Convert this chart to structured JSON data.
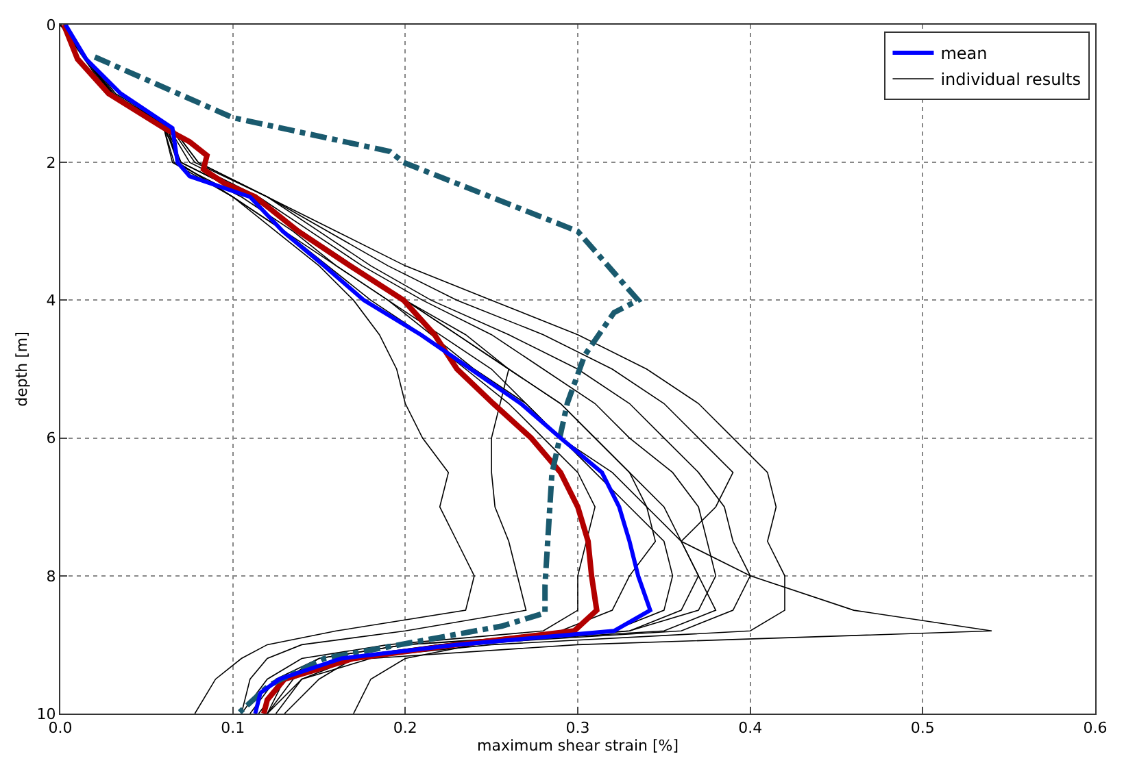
{
  "chart_data": {
    "type": "line",
    "xlabel": "maximum shear strain [%]",
    "ylabel": "depth [m]",
    "xlim": [
      0,
      0.6
    ],
    "xticks": [
      {
        "value": 0,
        "label": "0.0"
      },
      0.1,
      0.2,
      0.3,
      0.4,
      0.5,
      0.6
    ],
    "ylim": [
      10,
      0
    ],
    "yticks": [
      0,
      2,
      4,
      6,
      8,
      10
    ],
    "grid": true,
    "legend": "top right",
    "marker": "none",
    "series": [
      {
        "name": "individual results",
        "color": "#000000",
        "x": [
          0,
          0.03,
          0.062,
          0.068,
          0.1,
          0.125,
          0.15,
          0.17,
          0.185,
          0.195,
          0.2,
          0.21,
          0.225,
          0.22,
          0.23,
          0.24,
          0.235,
          0.16,
          0.12,
          0.105,
          0.09,
          0.078
        ],
        "values": [
          0,
          1,
          1.5,
          2,
          2.5,
          3,
          3.5,
          4,
          4.5,
          5,
          5.5,
          6,
          6.5,
          7,
          7.5,
          8,
          8.5,
          8.8,
          9,
          9.2,
          9.5,
          10
        ]
      },
      {
        "color": "#000000",
        "x": [
          0,
          0.03,
          0.06,
          0.07,
          0.11,
          0.14,
          0.17,
          0.2,
          0.23,
          0.26,
          0.29,
          0.31,
          0.33,
          0.34,
          0.36,
          0.4,
          0.46,
          0.54,
          0.3,
          0.18,
          0.14,
          0.12
        ],
        "values": [
          0,
          1,
          1.5,
          2,
          2.5,
          3,
          3.5,
          4,
          4.5,
          5,
          5.5,
          6,
          6.5,
          7,
          7.5,
          8,
          8.5,
          8.8,
          9,
          9.2,
          9.5,
          10
        ]
      },
      {
        "color": "#000000",
        "x": [
          0,
          0.03,
          0.065,
          0.08,
          0.12,
          0.16,
          0.2,
          0.25,
          0.3,
          0.34,
          0.37,
          0.39,
          0.41,
          0.415,
          0.41,
          0.42,
          0.42,
          0.4,
          0.25,
          0.17,
          0.14,
          0.125
        ],
        "values": [
          0,
          1,
          1.5,
          2,
          2.5,
          3,
          3.5,
          4,
          4.5,
          5,
          5.5,
          6,
          6.5,
          7,
          7.5,
          8,
          8.5,
          8.8,
          9,
          9.2,
          9.5,
          10
        ]
      },
      {
        "color": "#000000",
        "x": [
          0,
          0.032,
          0.065,
          0.08,
          0.12,
          0.155,
          0.19,
          0.23,
          0.28,
          0.32,
          0.35,
          0.37,
          0.39,
          0.38,
          0.36,
          0.37,
          0.38,
          0.35,
          0.22,
          0.16,
          0.13,
          0.115
        ],
        "values": [
          0,
          1,
          1.5,
          2,
          2.5,
          3,
          3.5,
          4,
          4.5,
          5,
          5.5,
          6,
          6.5,
          7,
          7.5,
          8,
          8.5,
          8.8,
          9,
          9.2,
          9.5,
          10
        ]
      },
      {
        "color": "#000000",
        "x": [
          0,
          0.028,
          0.06,
          0.07,
          0.11,
          0.14,
          0.17,
          0.2,
          0.235,
          0.26,
          0.255,
          0.25,
          0.25,
          0.252,
          0.26,
          0.265,
          0.27,
          0.2,
          0.14,
          0.12,
          0.11,
          0.105
        ],
        "values": [
          0,
          1,
          1.5,
          2,
          2.5,
          3,
          3.5,
          4,
          4.5,
          5,
          5.5,
          6,
          6.5,
          7,
          7.5,
          8,
          8.5,
          8.8,
          9,
          9.2,
          9.5,
          10
        ]
      },
      {
        "color": "#000000",
        "x": [
          0,
          0.03,
          0.06,
          0.065,
          0.1,
          0.13,
          0.16,
          0.19,
          0.22,
          0.25,
          0.27,
          0.29,
          0.31,
          0.33,
          0.35,
          0.355,
          0.35,
          0.32,
          0.2,
          0.15,
          0.13,
          0.12
        ],
        "values": [
          0,
          1,
          1.5,
          2,
          2.5,
          3,
          3.5,
          4,
          4.5,
          5,
          5.5,
          6,
          6.5,
          7,
          7.5,
          8,
          8.5,
          8.8,
          9,
          9.2,
          9.5,
          10
        ]
      },
      {
        "color": "#000000",
        "x": [
          0,
          0.03,
          0.063,
          0.075,
          0.115,
          0.145,
          0.175,
          0.21,
          0.25,
          0.28,
          0.31,
          0.33,
          0.355,
          0.37,
          0.375,
          0.38,
          0.37,
          0.33,
          0.2,
          0.15,
          0.125,
          0.11
        ],
        "values": [
          0,
          1,
          1.5,
          2,
          2.5,
          3,
          3.5,
          4,
          4.5,
          5,
          5.5,
          6,
          6.5,
          7,
          7.5,
          8,
          8.5,
          8.8,
          9,
          9.2,
          9.5,
          10
        ]
      },
      {
        "color": "#000000",
        "x": [
          0,
          0.031,
          0.061,
          0.068,
          0.1,
          0.13,
          0.155,
          0.18,
          0.21,
          0.235,
          0.26,
          0.28,
          0.3,
          0.31,
          0.305,
          0.3,
          0.3,
          0.28,
          0.19,
          0.14,
          0.12,
          0.105
        ],
        "values": [
          0,
          1,
          1.5,
          2,
          2.5,
          3,
          3.5,
          4,
          4.5,
          5,
          5.5,
          6,
          6.5,
          7,
          7.5,
          8,
          8.5,
          8.8,
          9,
          9.2,
          9.5,
          10
        ]
      },
      {
        "color": "#000000",
        "x": [
          0,
          0.029,
          0.06,
          0.066,
          0.105,
          0.135,
          0.16,
          0.19,
          0.215,
          0.24,
          0.27,
          0.29,
          0.32,
          0.34,
          0.345,
          0.33,
          0.32,
          0.29,
          0.22,
          0.17,
          0.15,
          0.13
        ],
        "values": [
          0,
          1,
          1.5,
          2,
          2.5,
          3,
          3.5,
          4,
          4.5,
          5,
          5.5,
          6,
          6.5,
          7,
          7.5,
          8,
          8.5,
          8.8,
          9,
          9.2,
          9.5,
          10
        ]
      },
      {
        "color": "#000000",
        "x": [
          0,
          0.03,
          0.062,
          0.07,
          0.11,
          0.14,
          0.17,
          0.2,
          0.23,
          0.26,
          0.29,
          0.31,
          0.33,
          0.35,
          0.36,
          0.37,
          0.36,
          0.33,
          0.24,
          0.2,
          0.18,
          0.17
        ],
        "values": [
          0,
          1,
          1.5,
          2,
          2.5,
          3,
          3.5,
          4,
          4.5,
          5,
          5.5,
          6,
          6.5,
          7,
          7.5,
          8,
          8.5,
          8.8,
          9,
          9.2,
          9.5,
          10
        ]
      },
      {
        "color": "#000000",
        "x": [
          0,
          0.03,
          0.064,
          0.078,
          0.12,
          0.15,
          0.18,
          0.215,
          0.26,
          0.3,
          0.33,
          0.35,
          0.37,
          0.385,
          0.39,
          0.4,
          0.39,
          0.36,
          0.23,
          0.16,
          0.135,
          0.12
        ],
        "values": [
          0,
          1,
          1.5,
          2,
          2.5,
          3,
          3.5,
          4,
          4.5,
          5,
          5.5,
          6,
          6.5,
          7,
          7.5,
          8,
          8.5,
          8.8,
          9,
          9.2,
          9.5,
          10
        ]
      },
      {
        "color": "#b20000",
        "x": [
          0.002,
          0.01,
          0.028,
          0.06,
          0.075,
          0.085,
          0.083,
          0.095,
          0.113,
          0.138,
          0.168,
          0.199,
          0.217,
          0.23,
          0.251,
          0.273,
          0.29,
          0.3,
          0.306,
          0.308,
          0.311,
          0.298,
          0.23,
          0.17,
          0.13,
          0.12,
          0.118
        ],
        "values": [
          0,
          0.5,
          1,
          1.5,
          1.7,
          1.9,
          2.1,
          2.3,
          2.5,
          3,
          3.5,
          4,
          4.5,
          5,
          5.5,
          6,
          6.5,
          7,
          7.5,
          8,
          8.5,
          8.8,
          9,
          9.2,
          9.5,
          9.8,
          10
        ]
      },
      {
        "color": "#1a5a6e",
        "line_style": "dashed",
        "x": [
          0.02,
          0.1,
          0.191,
          0.199,
          0.3,
          0.335,
          0.321,
          0.304,
          0.294,
          0.285,
          0.281,
          0.281,
          0.256,
          0.153,
          0.121,
          0.104
        ],
        "values": [
          0.47,
          1.35,
          1.84,
          2.0,
          3.0,
          4.0,
          4.18,
          4.8,
          5.49,
          6.52,
          8.14,
          8.54,
          8.73,
          9.2,
          9.59,
          9.98
        ]
      },
      {
        "name": "mean",
        "color": "#0000ff",
        "x": [
          0.003,
          0.015,
          0.035,
          0.065,
          0.068,
          0.075,
          0.11,
          0.129,
          0.153,
          0.176,
          0.209,
          0.238,
          0.267,
          0.29,
          0.314,
          0.324,
          0.33,
          0.335,
          0.342,
          0.321,
          0.23,
          0.163,
          0.127,
          0.116,
          0.113
        ],
        "values": [
          0,
          0.5,
          1,
          1.5,
          2,
          2.2,
          2.5,
          3,
          3.5,
          4,
          4.5,
          5,
          5.5,
          6,
          6.5,
          7,
          7.5,
          8,
          8.5,
          8.8,
          9,
          9.2,
          9.5,
          9.7,
          10
        ]
      }
    ]
  }
}
